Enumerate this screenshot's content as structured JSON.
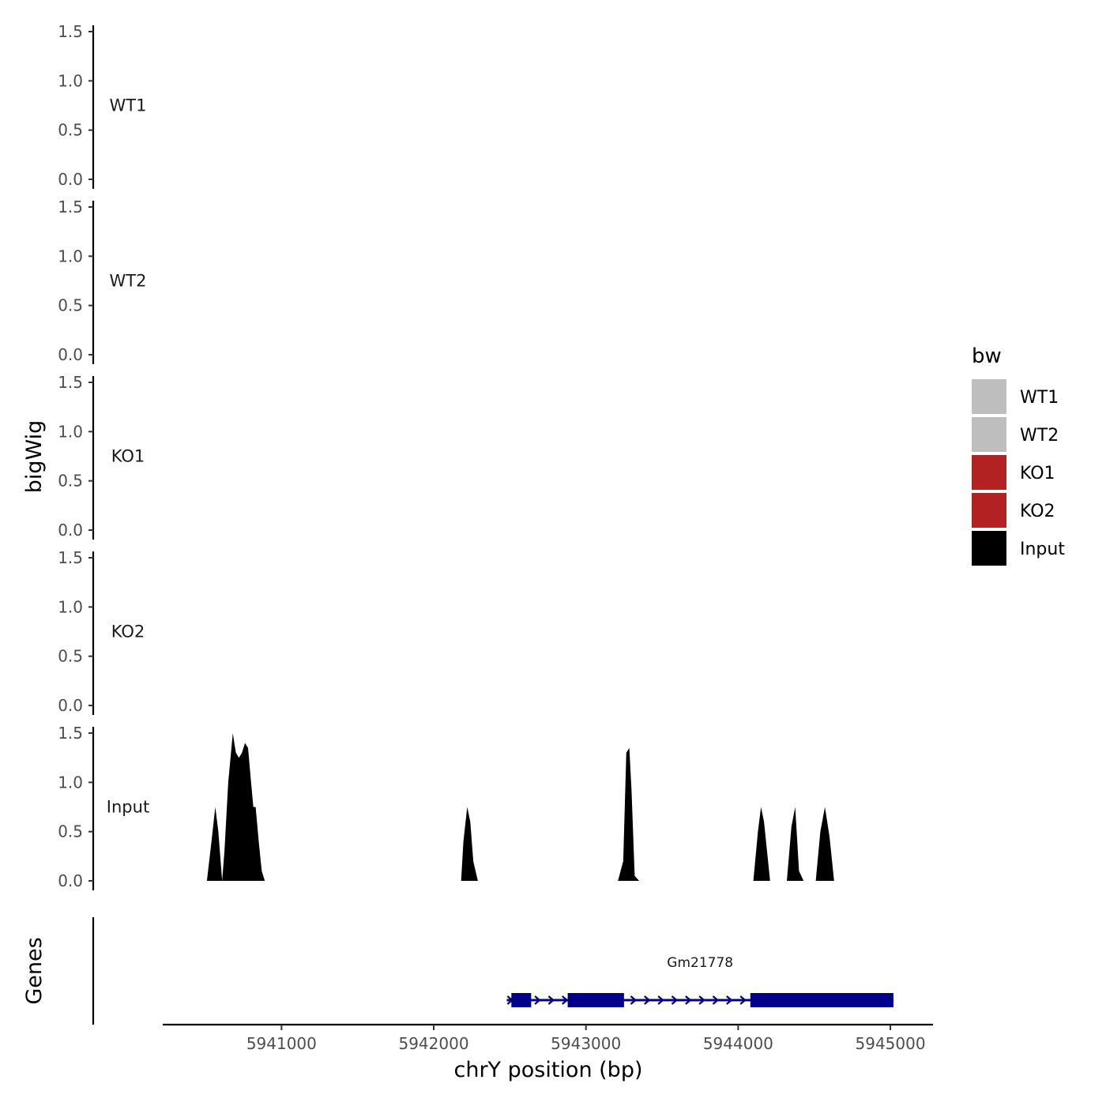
{
  "chart_data": {
    "type": "area",
    "ylabel": "bigWig",
    "genes_label": "Genes",
    "xlabel": "chrY position (bp)",
    "xlim": [
      5940230,
      5945280
    ],
    "ylim": [
      0,
      1.5
    ],
    "y_ticks": [
      0.0,
      0.5,
      1.0,
      1.5
    ],
    "y_tick_labels": [
      "0.0",
      "0.5",
      "1.0",
      "1.5"
    ],
    "x_ticks": [
      5941000,
      5942000,
      5943000,
      5944000,
      5945000
    ],
    "x_tick_labels": [
      "5941000",
      "5942000",
      "5943000",
      "5944000",
      "5945000"
    ],
    "legend": {
      "title": "bw",
      "placement": "right",
      "items": [
        {
          "label": "WT1",
          "color": "#bebebe"
        },
        {
          "label": "WT2",
          "color": "#bebebe"
        },
        {
          "label": "KO1",
          "color": "#b22222"
        },
        {
          "label": "KO2",
          "color": "#b22222"
        },
        {
          "label": "Input",
          "color": "#000000"
        }
      ]
    },
    "tracks": [
      {
        "name": "WT1",
        "color": "#bebebe",
        "x": [],
        "y": []
      },
      {
        "name": "WT2",
        "color": "#bebebe",
        "x": [],
        "y": []
      },
      {
        "name": "KO1",
        "color": "#b22222",
        "x": [],
        "y": []
      },
      {
        "name": "KO2",
        "color": "#b22222",
        "x": [],
        "y": []
      },
      {
        "name": "Input",
        "color": "#000000",
        "x": [
          5940510,
          5940540,
          5940565,
          5940585,
          5940610,
          5940625,
          5940650,
          5940680,
          5940690,
          5940700,
          5940720,
          5940740,
          5940760,
          5940780,
          5940800,
          5940815,
          5940830,
          5940850,
          5940870,
          5940890,
          5942180,
          5942195,
          5942220,
          5942240,
          5942260,
          5942290,
          5943210,
          5943245,
          5943265,
          5943285,
          5943300,
          5943320,
          5943350,
          5944100,
          5944130,
          5944150,
          5944170,
          5944210,
          5944320,
          5944350,
          5944375,
          5944400,
          5944430,
          5944510,
          5944540,
          5944570,
          5944600,
          5944630
        ],
        "y": [
          0,
          0.4,
          0.75,
          0.5,
          0,
          0.3,
          1.0,
          1.5,
          1.4,
          1.3,
          1.25,
          1.3,
          1.4,
          1.35,
          1.0,
          0.75,
          0.75,
          0.4,
          0.1,
          0,
          0,
          0.4,
          0.75,
          0.6,
          0.2,
          0,
          0,
          0.2,
          1.3,
          1.35,
          0.9,
          0.05,
          0,
          0,
          0.5,
          0.75,
          0.6,
          0,
          0,
          0.55,
          0.75,
          0.1,
          0,
          0,
          0.5,
          0.75,
          0.45,
          0
        ]
      }
    ],
    "gene": {
      "name": "Gm21778",
      "color": "#00008b",
      "start": 5942480,
      "end": 5945020,
      "exons": [
        [
          5942510,
          5942640
        ],
        [
          5942880,
          5943250
        ],
        [
          5944080,
          5945020
        ]
      ],
      "strand": "+"
    }
  }
}
